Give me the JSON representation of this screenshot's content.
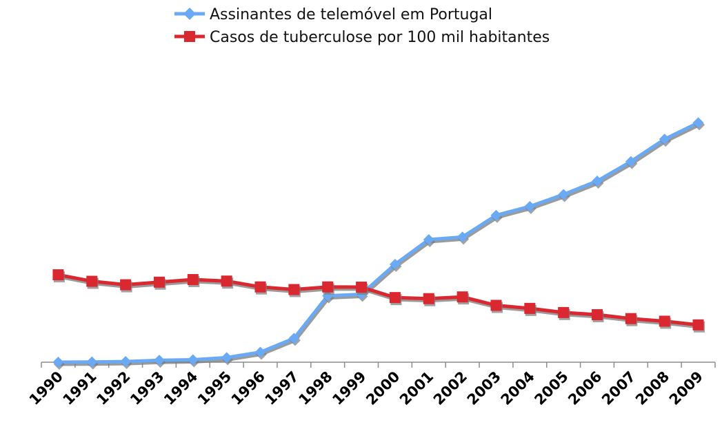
{
  "chart_data": {
    "type": "line",
    "categories": [
      "1990",
      "1991",
      "1992",
      "1993",
      "1994",
      "1995",
      "1996",
      "1997",
      "1998",
      "1999",
      "2000",
      "2001",
      "2002",
      "2003",
      "2004",
      "2005",
      "2006",
      "2007",
      "2008",
      "2009"
    ],
    "series": [
      {
        "name": "Assinantes de telemóvel em Portugal",
        "color": "#6aa9f4",
        "marker": "diamond",
        "values": [
          0.0,
          0.1,
          0.3,
          0.9,
          1.1,
          2.1,
          4.6,
          11.0,
          30.6,
          31.3,
          45.1,
          56.5,
          57.7,
          67.7,
          71.8,
          77.3,
          83.5,
          92.5,
          102.8,
          110.4
        ]
      },
      {
        "name": "Casos de tuberculose por 100 mil habitantes",
        "color": "#d9282f",
        "marker": "square",
        "values": [
          40.3,
          37.3,
          35.7,
          36.9,
          38.1,
          37.4,
          34.7,
          33.5,
          34.7,
          34.6,
          29.8,
          29.3,
          30.1,
          26.2,
          24.8,
          22.9,
          21.9,
          20.1,
          18.9,
          17.2
        ]
      }
    ],
    "ylim": [
      0,
      140
    ],
    "grid": false,
    "y_axis_visible": false,
    "legend_position": "top-center",
    "title": "",
    "xlabel": "",
    "ylabel": ""
  }
}
